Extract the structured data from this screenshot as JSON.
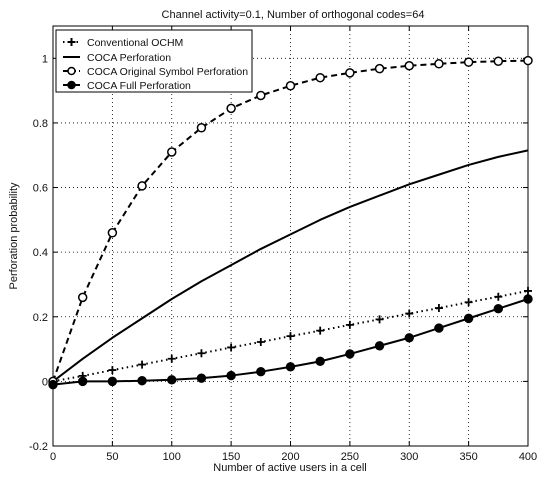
{
  "chart_data": {
    "type": "line",
    "title": "Channel activity=0.1, Number of orthogonal codes=64",
    "xlabel": "Number of active users in a cell",
    "ylabel": "Perforation probability",
    "xlim": [
      0,
      400
    ],
    "ylim": [
      -0.2,
      1.1
    ],
    "xticks": [
      0,
      50,
      100,
      150,
      200,
      250,
      300,
      350,
      400
    ],
    "yticks": [
      -0.2,
      0,
      0.2,
      0.4,
      0.6,
      0.8,
      1
    ],
    "xtick_labels": [
      "0",
      "50",
      "100",
      "150",
      "200",
      "250",
      "300",
      "350",
      "400"
    ],
    "ytick_labels": [
      "-0.2",
      "0",
      "0.2",
      "0.4",
      "0.6",
      "0.8",
      "1"
    ],
    "grid": true,
    "legend_position": "top-left",
    "series": [
      {
        "name": "Conventional OCHM",
        "style": "dotted-plus",
        "x": [
          0,
          25,
          50,
          75,
          100,
          125,
          150,
          175,
          200,
          225,
          250,
          275,
          300,
          325,
          350,
          375,
          400
        ],
        "y": [
          0.0,
          0.017,
          0.035,
          0.052,
          0.07,
          0.087,
          0.105,
          0.122,
          0.14,
          0.157,
          0.175,
          0.192,
          0.21,
          0.227,
          0.245,
          0.262,
          0.28
        ]
      },
      {
        "name": "COCA Perforation",
        "style": "solid",
        "x": [
          0,
          25,
          50,
          75,
          100,
          125,
          150,
          175,
          200,
          225,
          250,
          275,
          300,
          325,
          350,
          375,
          400
        ],
        "y": [
          0.0,
          0.07,
          0.135,
          0.195,
          0.255,
          0.31,
          0.36,
          0.41,
          0.455,
          0.5,
          0.54,
          0.575,
          0.61,
          0.64,
          0.67,
          0.695,
          0.715
        ]
      },
      {
        "name": "COCA Original Symbol Perforation",
        "style": "dashed-open-circle",
        "x": [
          0,
          25,
          50,
          75,
          100,
          125,
          150,
          175,
          200,
          225,
          250,
          275,
          300,
          325,
          350,
          375,
          400
        ],
        "y": [
          0.0,
          0.26,
          0.46,
          0.605,
          0.71,
          0.785,
          0.845,
          0.885,
          0.915,
          0.94,
          0.955,
          0.968,
          0.977,
          0.983,
          0.988,
          0.991,
          0.993
        ]
      },
      {
        "name": "COCA Full Perforation",
        "style": "solid-filled-circle",
        "x": [
          0,
          25,
          50,
          75,
          100,
          125,
          150,
          175,
          200,
          225,
          250,
          275,
          300,
          325,
          350,
          375,
          400
        ],
        "y": [
          -0.01,
          0.0,
          0.0,
          0.002,
          0.005,
          0.01,
          0.018,
          0.03,
          0.045,
          0.062,
          0.085,
          0.11,
          0.135,
          0.165,
          0.195,
          0.225,
          0.255
        ]
      }
    ]
  }
}
